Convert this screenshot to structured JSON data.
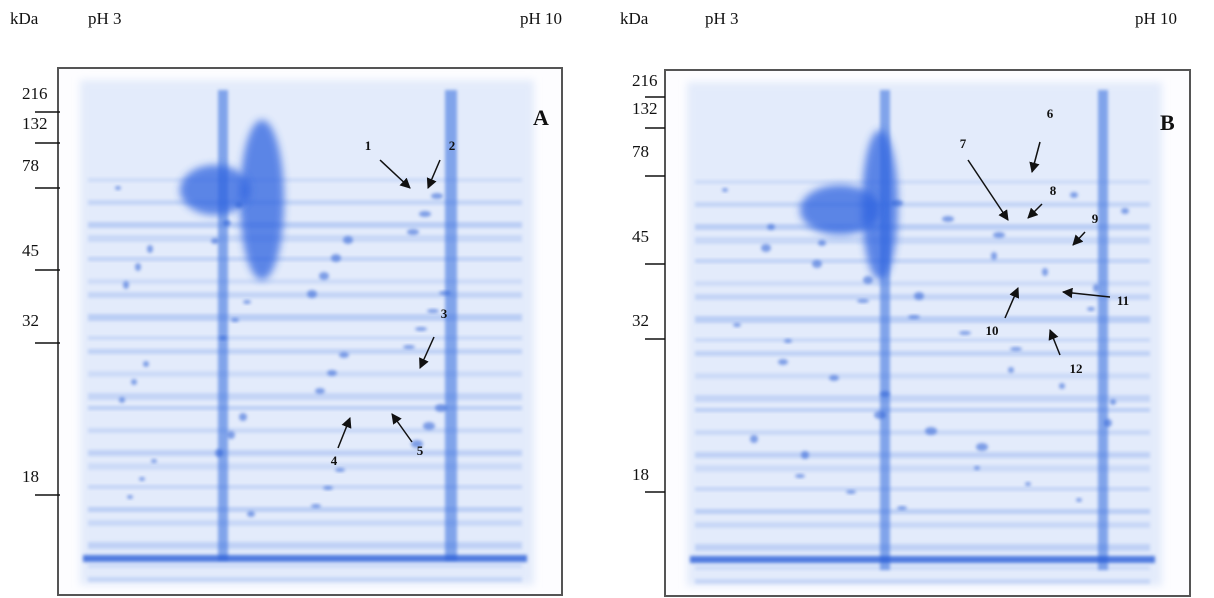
{
  "panels": [
    {
      "kda_label": "kDa",
      "ph_left": "pH 3",
      "ph_right": "pH 10",
      "letter": "A",
      "markers": [
        216,
        132,
        78,
        45,
        32,
        18
      ],
      "spots": [
        "1",
        "2",
        "3",
        "4",
        "5"
      ]
    },
    {
      "kda_label": "kDa",
      "ph_left": "pH 3",
      "ph_right": "pH 10",
      "letter": "B",
      "markers": [
        216,
        132,
        78,
        45,
        32,
        18
      ],
      "spots": [
        "6",
        "7",
        "8",
        "9",
        "10",
        "11",
        "12"
      ]
    }
  ]
}
